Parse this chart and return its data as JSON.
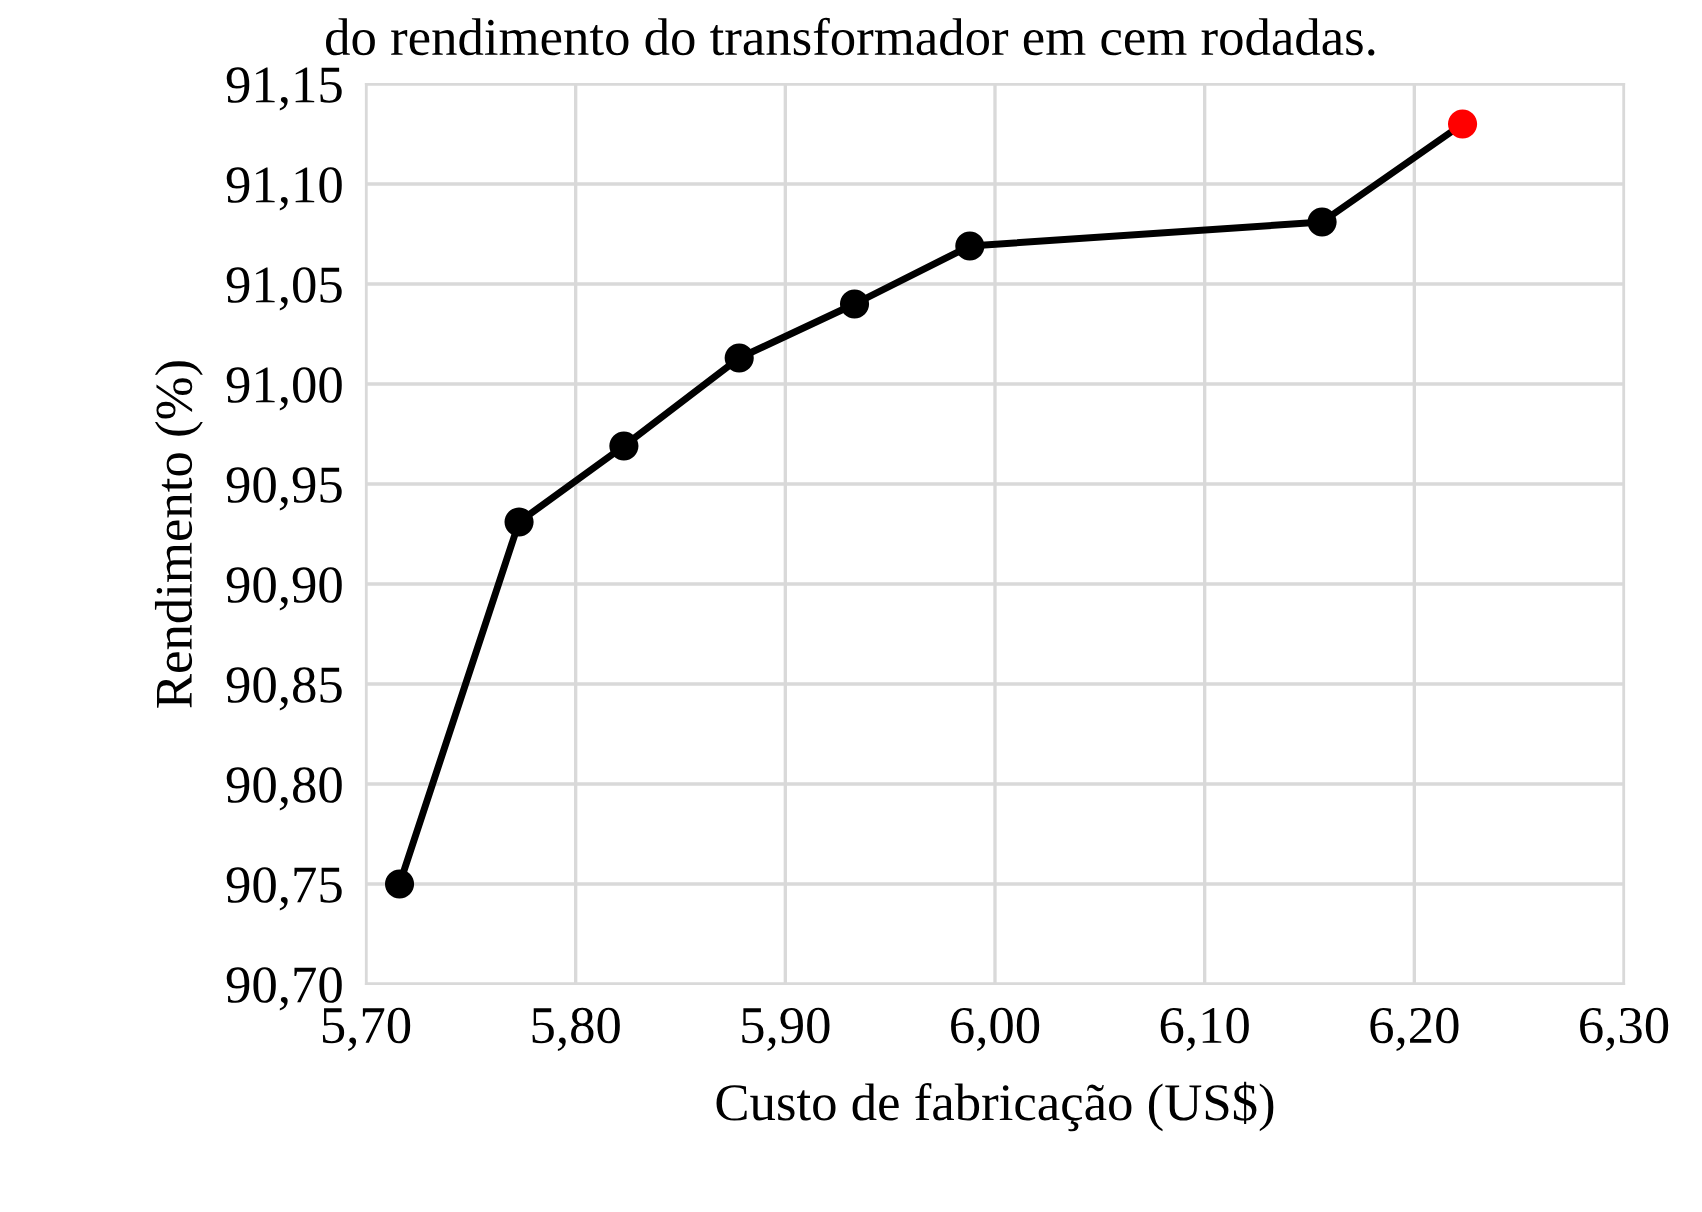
{
  "chart_data": {
    "type": "line",
    "title": "do rendimento do transformador em cem rodadas.",
    "xlabel": "Custo de fabricação (US$)",
    "ylabel": "Rendimento (%)",
    "series": [
      {
        "color": "#000000",
        "colors": [
          "#000000",
          "#000000",
          "#000000",
          "#000000",
          "#000000",
          "#000000",
          "#000000",
          "#ff0000"
        ],
        "x": [
          5.716,
          5.773,
          5.823,
          5.878,
          5.933,
          5.988,
          6.156,
          6.223
        ],
        "values": [
          90.75,
          90.931,
          90.969,
          91.013,
          91.04,
          91.069,
          91.081,
          91.13
        ]
      }
    ],
    "xlim": [
      5.7,
      6.3
    ],
    "ylim": [
      90.7,
      91.15
    ],
    "xticks": [
      {
        "value": 5.7,
        "label": "5,70"
      },
      {
        "value": 5.8,
        "label": "5,80"
      },
      {
        "value": 5.9,
        "label": "5,90"
      },
      {
        "value": 6.0,
        "label": "6,00"
      },
      {
        "value": 6.1,
        "label": "6,10"
      },
      {
        "value": 6.2,
        "label": "6,20"
      },
      {
        "value": 6.3,
        "label": "6,30"
      }
    ],
    "yticks": [
      {
        "value": 90.7,
        "label": "90,70"
      },
      {
        "value": 90.75,
        "label": "90,75"
      },
      {
        "value": 90.8,
        "label": "90,80"
      },
      {
        "value": 90.85,
        "label": "90,85"
      },
      {
        "value": 90.9,
        "label": "90,90"
      },
      {
        "value": 90.95,
        "label": "90,95"
      },
      {
        "value": 91.0,
        "label": "91,00"
      },
      {
        "value": 91.05,
        "label": "91,05"
      },
      {
        "value": 91.1,
        "label": "91,10"
      },
      {
        "value": 91.15,
        "label": "91,15"
      }
    ],
    "grid": true,
    "marker": "circle",
    "line_style": "solid",
    "legend": false
  }
}
